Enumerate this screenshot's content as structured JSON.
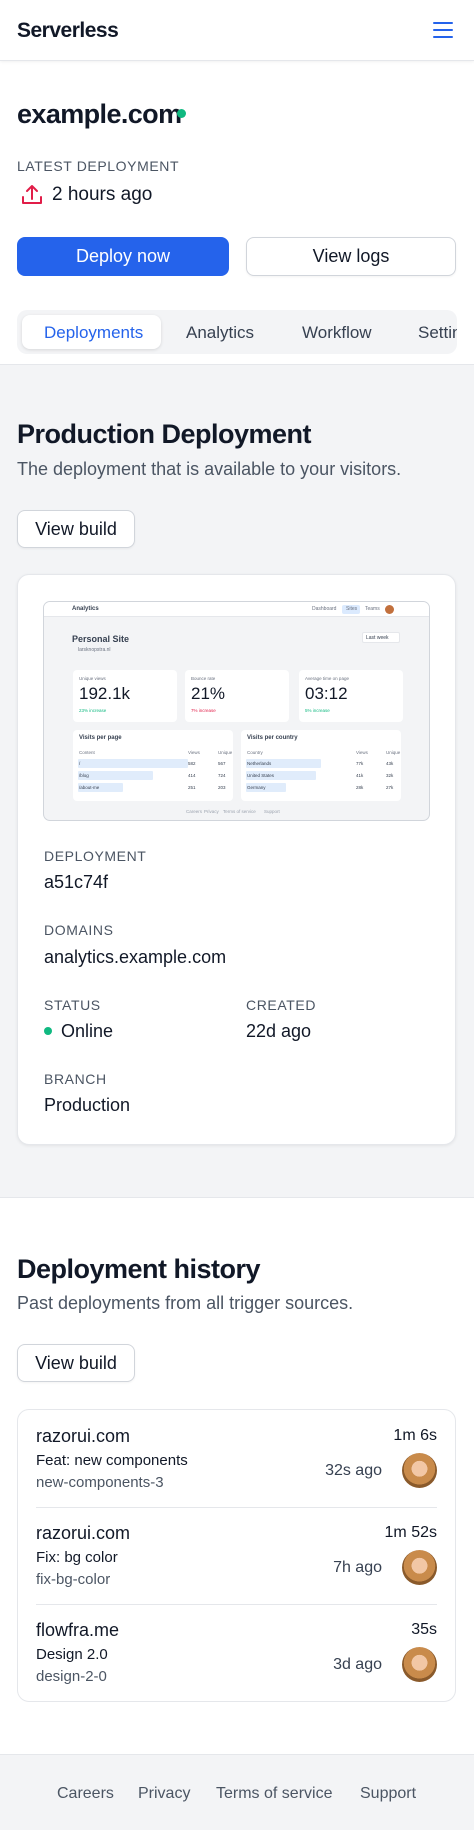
{
  "header": {
    "brand": "Serverless"
  },
  "site": {
    "name": "example.com"
  },
  "latest": {
    "label": "LATEST DEPLOYMENT",
    "time": "2 hours ago"
  },
  "actions": {
    "deploy": "Deploy now",
    "logs": "View logs"
  },
  "tabs": [
    "Deployments",
    "Analytics",
    "Workflow",
    "Settings"
  ],
  "production": {
    "title": "Production Deployment",
    "subtitle": "The deployment that is available to your visitors.",
    "button": "View build",
    "preview": {
      "app": "Analytics",
      "nav": [
        "Dashboard",
        "Sites",
        "Teams"
      ],
      "site": "Personal Site",
      "domain": "larsknopstra.nl",
      "range": "Last week",
      "stats": [
        {
          "label": "Unique views",
          "value": "192.1k",
          "change": "23% increase"
        },
        {
          "label": "Bounce rate",
          "value": "21%",
          "change": "7% increase"
        },
        {
          "label": "Average time on page",
          "value": "03:12",
          "change": "5% increase"
        }
      ],
      "tables": [
        {
          "title": "Visits per page",
          "columns": [
            "Content",
            "Views",
            "Unique"
          ],
          "rows": [
            [
              "/",
              "582",
              "567"
            ],
            [
              "/blog",
              "414",
              "724"
            ],
            [
              "/about-me",
              "251",
              "203"
            ]
          ]
        },
        {
          "title": "Visits per country",
          "columns": [
            "Country",
            "Views",
            "Unique"
          ],
          "rows": [
            [
              "Netherlands",
              "77k",
              "43k"
            ],
            [
              "United States",
              "41k",
              "32k"
            ],
            [
              "Germany",
              "28k",
              "27k"
            ]
          ]
        }
      ],
      "footer": [
        "Careers",
        "Privacy",
        "Terms of service",
        "Support"
      ]
    },
    "details": {
      "deployment": {
        "label": "DEPLOYMENT",
        "value": "a51c74f"
      },
      "domains": {
        "label": "DOMAINS",
        "value": "analytics.example.com"
      },
      "status": {
        "label": "STATUS",
        "value": "Online"
      },
      "created": {
        "label": "CREATED",
        "value": "22d ago"
      },
      "branch": {
        "label": "BRANCH",
        "value": "Production"
      }
    }
  },
  "history": {
    "title": "Deployment history",
    "subtitle": "Past deployments from all trigger sources.",
    "button": "View build",
    "items": [
      {
        "site": "razorui.com",
        "duration": "1m 6s",
        "message": "Feat: new components",
        "branch": "new-components-3",
        "time": "32s ago"
      },
      {
        "site": "razorui.com",
        "duration": "1m 52s",
        "message": "Fix: bg color",
        "branch": "fix-bg-color",
        "time": "7h ago"
      },
      {
        "site": "flowfra.me",
        "duration": "35s",
        "message": "Design 2.0",
        "branch": "design-2-0",
        "time": "3d ago"
      }
    ]
  },
  "footer": {
    "links": [
      "Careers",
      "Privacy",
      "Terms of service",
      "Support"
    ]
  }
}
